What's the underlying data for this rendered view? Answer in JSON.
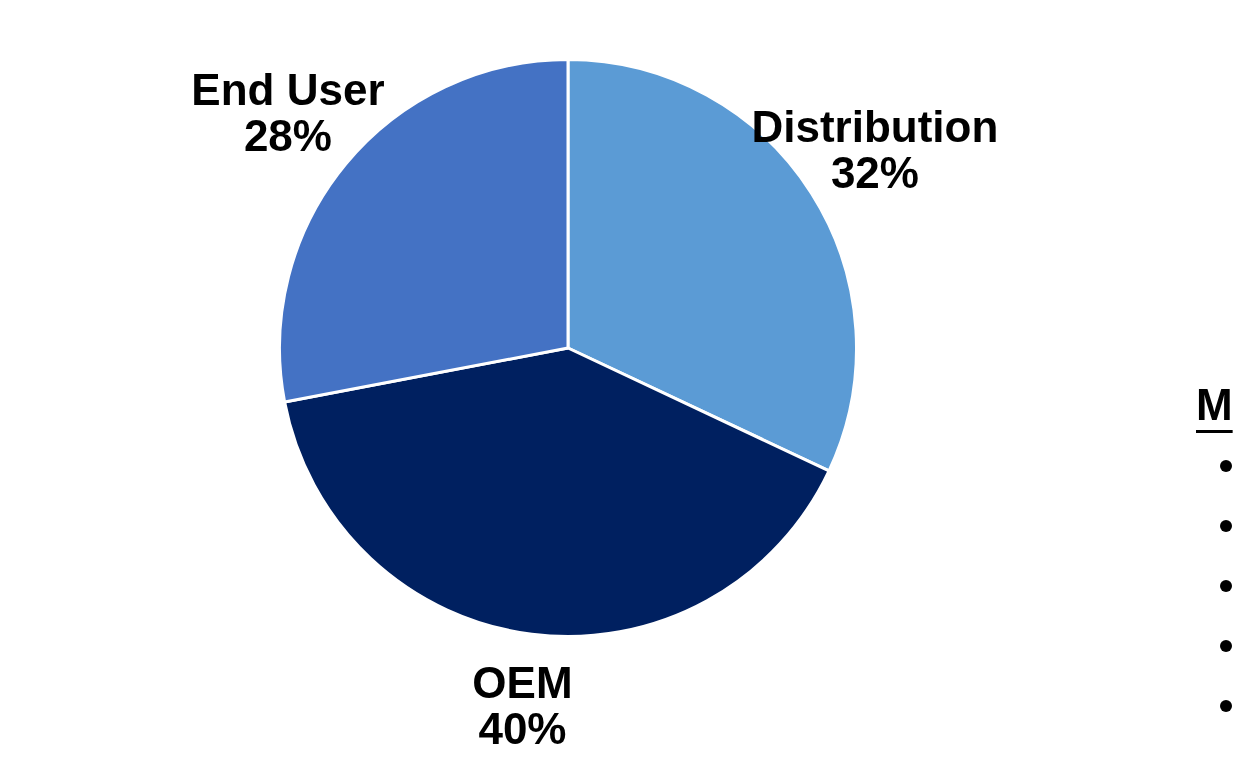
{
  "chart_data": {
    "type": "pie",
    "categories": [
      "Distribution",
      "OEM",
      "End User"
    ],
    "values": [
      32,
      40,
      28
    ],
    "colors": [
      "#5b9bd5",
      "#002060",
      "#4472c4"
    ],
    "value_labels": [
      "32%",
      "40%",
      "28%"
    ],
    "legend": false,
    "annotations": [
      "M"
    ]
  }
}
